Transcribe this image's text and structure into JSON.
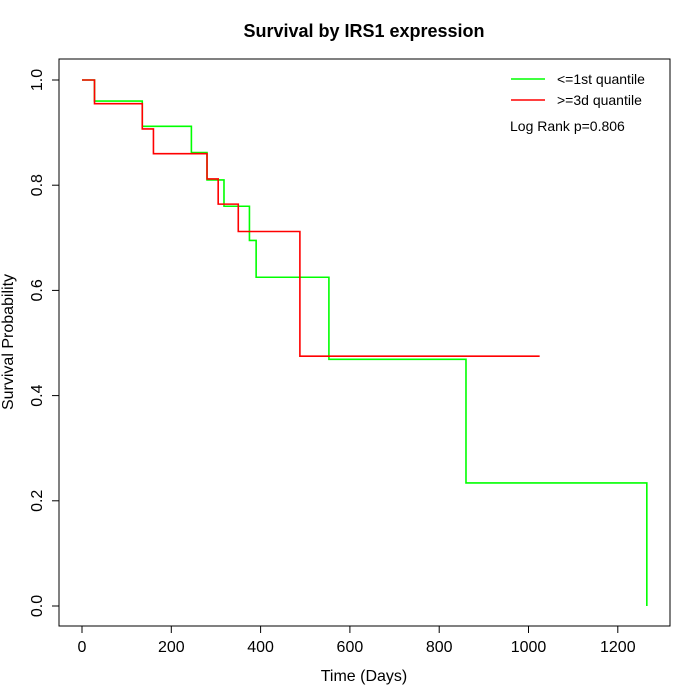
{
  "chart_data": {
    "type": "line",
    "step": true,
    "title": "Survival by IRS1 expression",
    "xlabel": "Time (Days)",
    "ylabel": "Survival Probability",
    "xlim": [
      0,
      1265
    ],
    "ylim": [
      0,
      1.0
    ],
    "x_ticks": [
      0,
      200,
      400,
      600,
      800,
      1000,
      1200
    ],
    "x_tick_labels": [
      "0",
      "200",
      "400",
      "600",
      "800",
      "1000",
      "1200"
    ],
    "y_ticks": [
      0.0,
      0.2,
      0.4,
      0.6,
      0.8,
      1.0
    ],
    "y_tick_labels": [
      "0.0",
      "0.2",
      "0.4",
      "0.6",
      "0.8",
      "1.0"
    ],
    "grid": false,
    "legend_position": "top-right",
    "annotation": "Log Rank p=0.806",
    "series": [
      {
        "name": "<=1st quantile",
        "color": "#00ff00",
        "x": [
          0,
          28,
          135,
          245,
          280,
          318,
          375,
          390,
          553,
          860,
          1265
        ],
        "y": [
          1.0,
          0.96,
          0.912,
          0.862,
          0.81,
          0.76,
          0.695,
          0.625,
          0.469,
          0.234,
          0.0
        ]
      },
      {
        "name": ">=3d quantile",
        "color": "#ff0000",
        "x": [
          0,
          28,
          135,
          160,
          280,
          305,
          350,
          488,
          1025
        ],
        "y": [
          1.0,
          0.955,
          0.907,
          0.86,
          0.812,
          0.764,
          0.712,
          0.475,
          0.475
        ]
      }
    ]
  }
}
